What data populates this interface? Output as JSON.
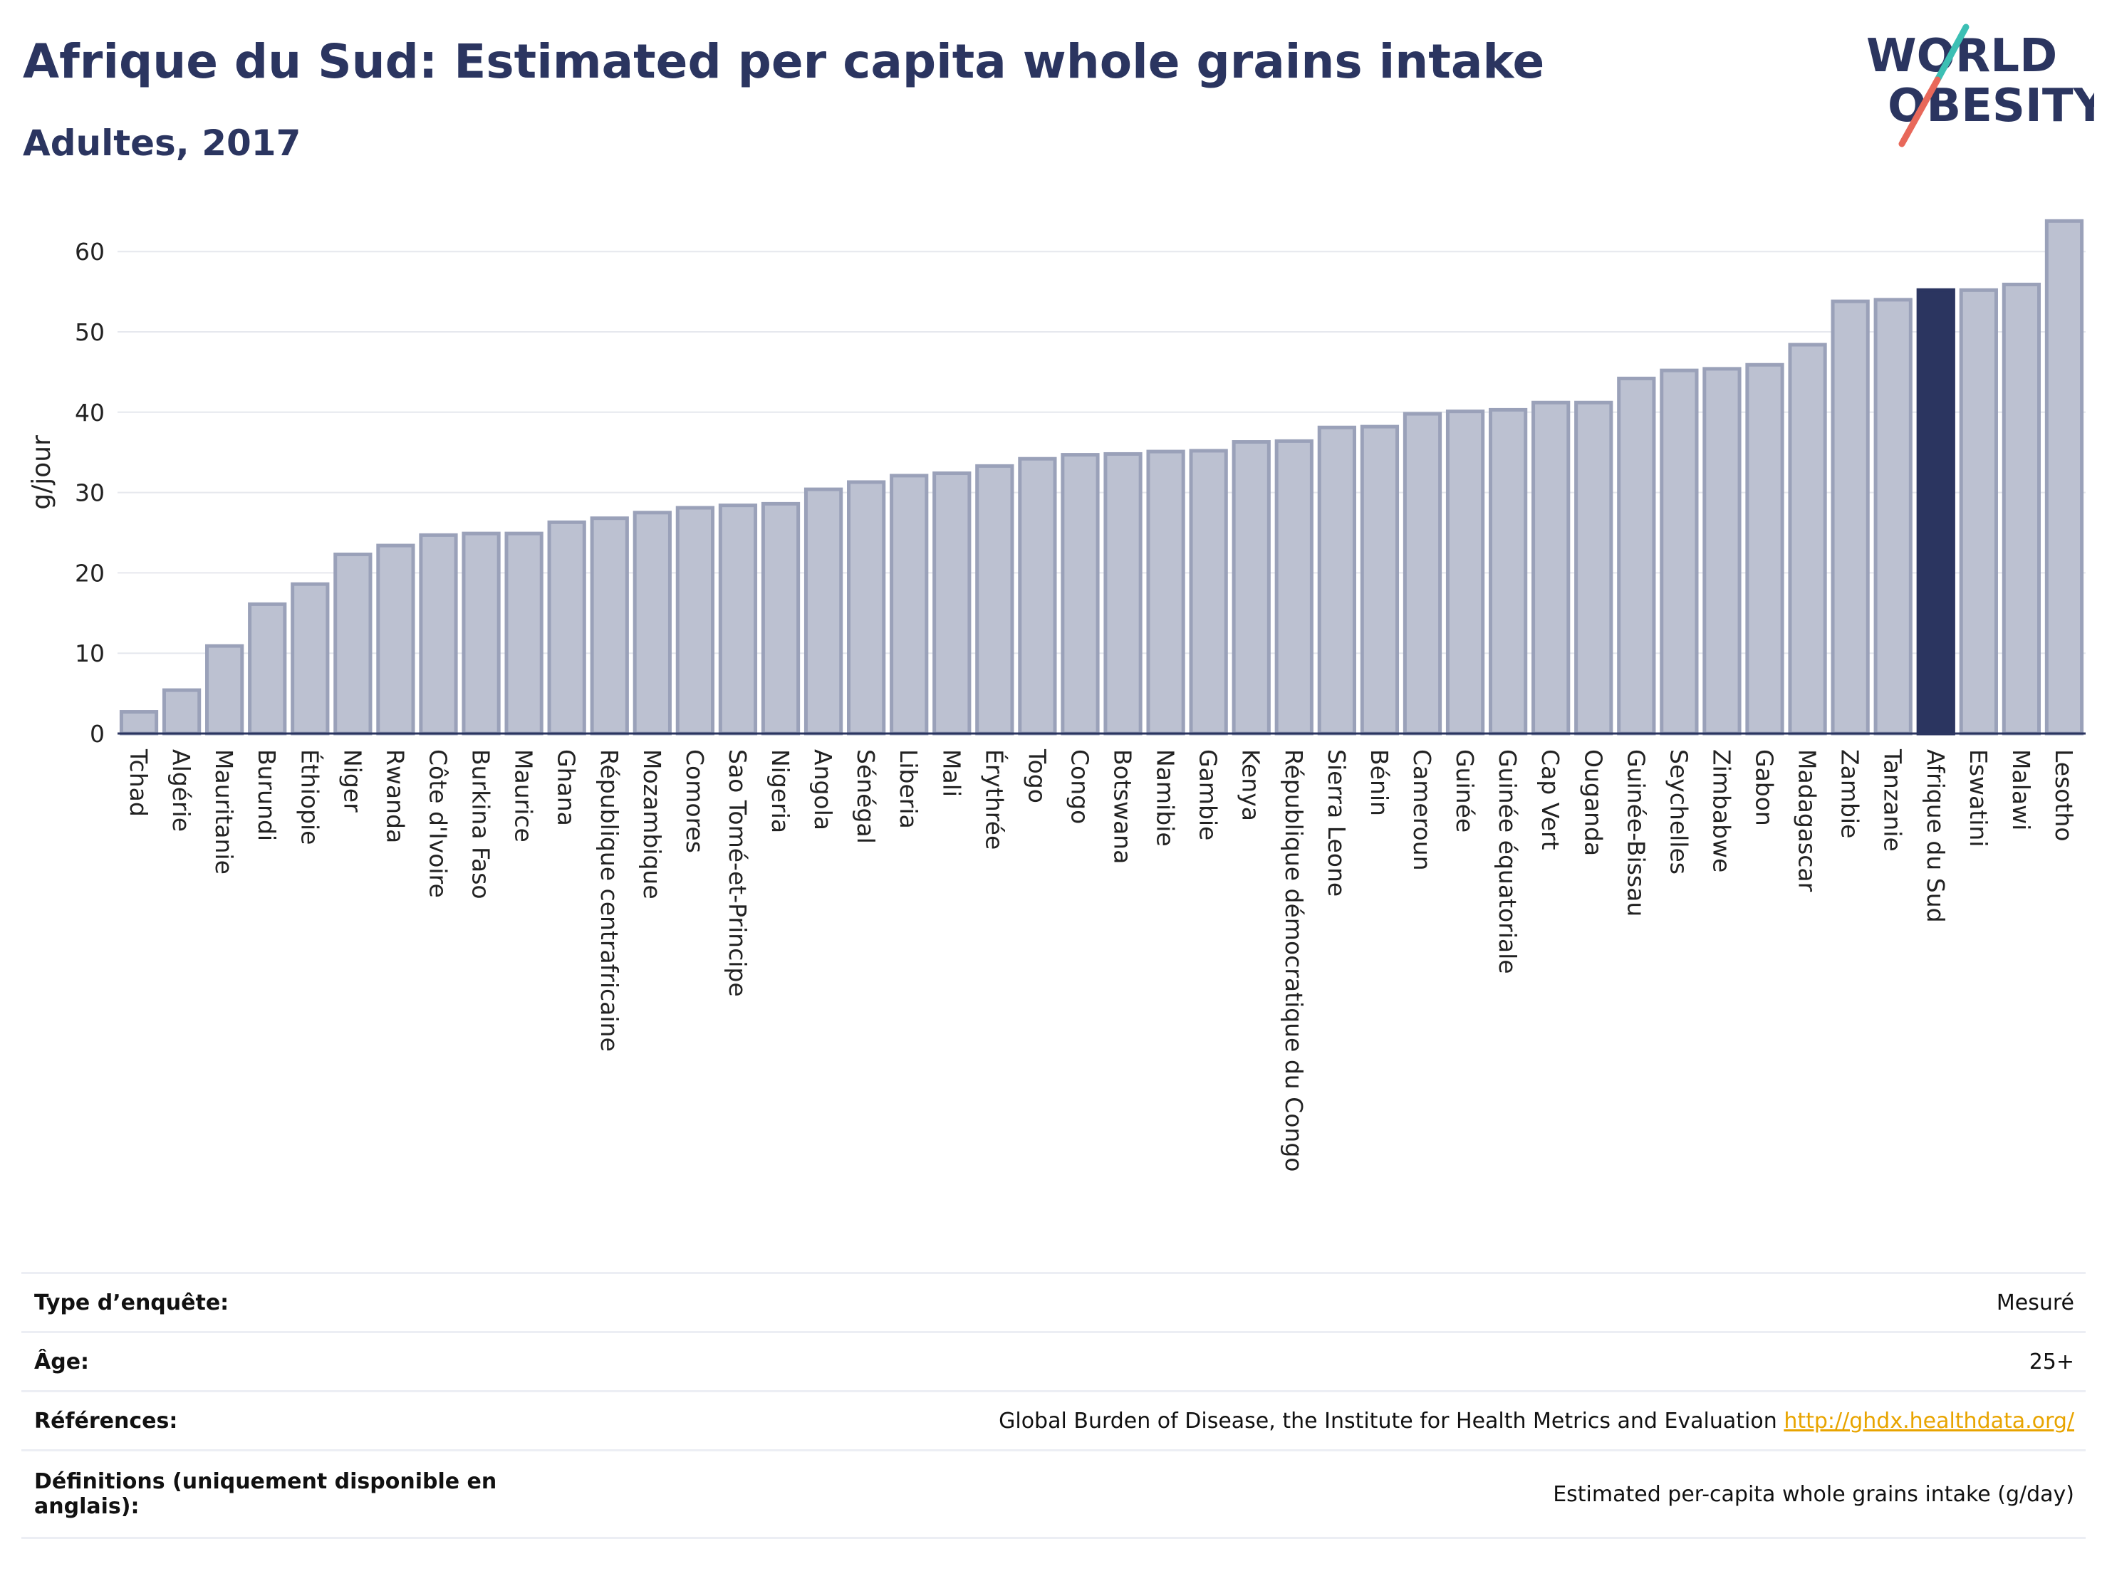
{
  "header": {
    "title": "Afrique du Sud: Estimated per capita whole grains intake",
    "subtitle": "Adultes, 2017"
  },
  "logo": {
    "line1": "WORLD",
    "line2": "OBESITY",
    "icon": "world-obesity-logo",
    "colors": {
      "text": "#2b3560",
      "teal": "#3cbfb4",
      "coral": "#e8685a"
    }
  },
  "colors": {
    "bar_default_fill": "#bcc1d1",
    "bar_default_stroke": "#9aa1b9",
    "bar_highlight": "#2b3560",
    "grid": "#e6e8ee",
    "axis": "#2b3560"
  },
  "chart_data": {
    "type": "bar",
    "title": "Afrique du Sud: Estimated per capita whole grains intake",
    "subtitle": "Adultes, 2017",
    "xlabel": "",
    "ylabel": "g/jour",
    "ylim": [
      0,
      65
    ],
    "yticks": [
      0,
      10,
      20,
      30,
      40,
      50,
      60
    ],
    "grid": true,
    "highlight": "Afrique du Sud",
    "categories": [
      "Tchad",
      "Algérie",
      "Mauritanie",
      "Burundi",
      "Éthiopie",
      "Niger",
      "Rwanda",
      "Côte d'Ivoire",
      "Burkina Faso",
      "Maurice",
      "Ghana",
      "République centrafricaine",
      "Mozambique",
      "Comores",
      "Sao Tomé-et-Principe",
      "Nigeria",
      "Angola",
      "Sénégal",
      "Liberia",
      "Mali",
      "Érythrée",
      "Togo",
      "Congo",
      "Botswana",
      "Namibie",
      "Gambie",
      "Kenya",
      "République démocratique du Congo",
      "Sierra Leone",
      "Bénin",
      "Cameroun",
      "Guinée",
      "Guinée équatoriale",
      "Cap Vert",
      "Ouganda",
      "Guinée-Bissau",
      "Seychelles",
      "Zimbabwe",
      "Gabon",
      "Madagascar",
      "Zambie",
      "Tanzanie",
      "Afrique du Sud",
      "Eswatini",
      "Malawi",
      "Lesotho"
    ],
    "values": [
      2.7,
      5.4,
      10.9,
      16.1,
      18.6,
      22.3,
      23.4,
      24.7,
      24.9,
      24.9,
      26.3,
      26.8,
      27.5,
      28.1,
      28.4,
      28.6,
      30.4,
      31.3,
      32.1,
      32.4,
      33.3,
      34.2,
      34.7,
      34.8,
      35.1,
      35.2,
      36.3,
      36.4,
      38.1,
      38.2,
      39.8,
      40.1,
      40.3,
      41.2,
      41.2,
      44.2,
      45.2,
      45.4,
      45.9,
      48.4,
      53.8,
      54.0,
      55.2,
      55.2,
      55.9,
      63.8
    ]
  },
  "info_table": {
    "rows": [
      {
        "key": "Type d’enquête:",
        "value": "Mesuré"
      },
      {
        "key": "Âge:",
        "value": "25+"
      },
      {
        "key": "Références:",
        "value": "Global Burden of Disease, the Institute for Health Metrics and Evaluation",
        "link": "http://ghdx.healthdata.org/"
      },
      {
        "key": "Définitions (uniquement disponible en anglais):",
        "value": "Estimated per-capita whole grains intake (g/day)"
      }
    ]
  }
}
